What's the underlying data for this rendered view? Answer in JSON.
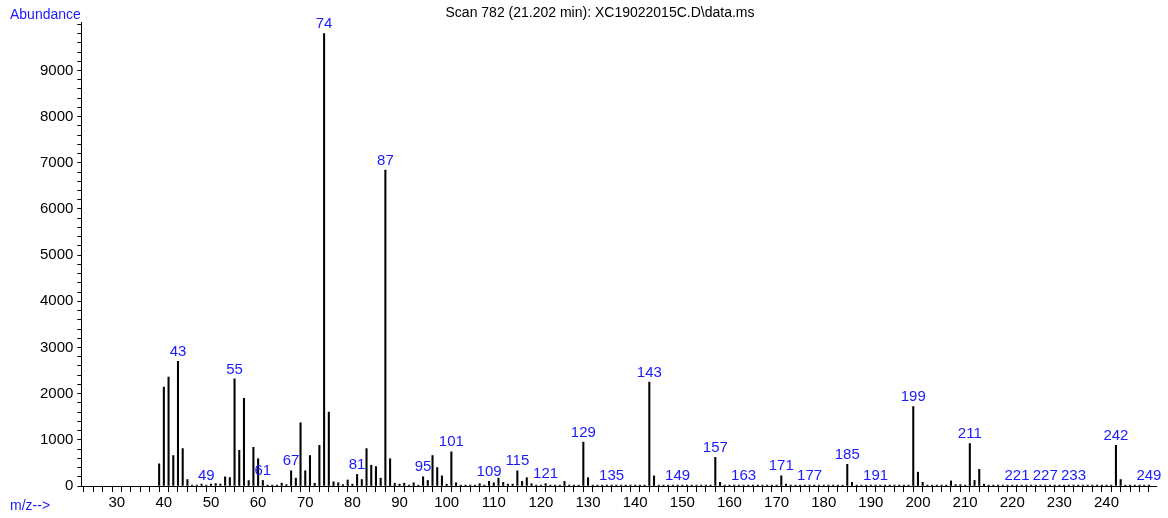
{
  "chart_data": {
    "type": "bar",
    "title": "Scan 782 (21.202 min): XC19022015C.D\\data.ms",
    "xlabel": "m/z-->",
    "ylabel": "Abundance",
    "color": "#000000",
    "x": [
      39,
      40,
      41,
      42,
      43,
      44,
      45,
      46,
      47,
      48,
      49,
      50,
      51,
      52,
      53,
      54,
      55,
      56,
      57,
      58,
      59,
      60,
      61,
      62,
      63,
      64,
      65,
      66,
      67,
      68,
      69,
      70,
      71,
      72,
      73,
      74,
      75,
      76,
      77,
      78,
      79,
      80,
      81,
      82,
      83,
      84,
      85,
      86,
      87,
      88,
      89,
      90,
      91,
      92,
      93,
      94,
      95,
      96,
      97,
      98,
      99,
      100,
      101,
      102,
      103,
      104,
      105,
      106,
      107,
      108,
      109,
      110,
      111,
      112,
      113,
      114,
      115,
      116,
      117,
      118,
      119,
      120,
      121,
      122,
      123,
      124,
      125,
      126,
      127,
      128,
      129,
      130,
      131,
      132,
      133,
      134,
      135,
      136,
      137,
      138,
      139,
      140,
      141,
      142,
      143,
      144,
      145,
      146,
      147,
      148,
      149,
      150,
      151,
      152,
      153,
      154,
      155,
      156,
      157,
      158,
      159,
      160,
      161,
      162,
      163,
      164,
      165,
      166,
      167,
      168,
      169,
      170,
      171,
      172,
      173,
      174,
      175,
      176,
      177,
      178,
      179,
      180,
      181,
      182,
      183,
      184,
      185,
      186,
      187,
      188,
      189,
      190,
      191,
      192,
      193,
      194,
      195,
      196,
      197,
      198,
      199,
      200,
      201,
      202,
      203,
      204,
      205,
      206,
      207,
      208,
      209,
      210,
      211,
      212,
      213,
      214,
      215,
      216,
      217,
      218,
      219,
      220,
      221,
      222,
      223,
      224,
      225,
      226,
      227,
      228,
      229,
      230,
      231,
      232,
      233,
      234,
      235,
      236,
      237,
      238,
      239,
      240,
      241,
      242,
      243,
      244,
      245,
      246,
      247,
      248,
      249
    ],
    "values": [
      480,
      2140,
      2360,
      660,
      2700,
      810,
      140,
      20,
      20,
      40,
      20,
      40,
      50,
      40,
      200,
      180,
      2320,
      770,
      1900,
      120,
      840,
      590,
      120,
      20,
      20,
      20,
      60,
      30,
      330,
      170,
      1370,
      330,
      660,
      60,
      880,
      9800,
      1600,
      90,
      70,
      30,
      130,
      40,
      250,
      140,
      810,
      450,
      420,
      170,
      6840,
      590,
      60,
      40,
      60,
      20,
      70,
      20,
      200,
      120,
      660,
      400,
      220,
      40,
      740,
      70,
      20,
      20,
      20,
      20,
      50,
      20,
      100,
      70,
      170,
      80,
      40,
      40,
      330,
      100,
      180,
      50,
      20,
      20,
      50,
      20,
      20,
      20,
      100,
      20,
      20,
      20,
      950,
      180,
      20,
      20,
      20,
      20,
      20,
      20,
      20,
      20,
      20,
      20,
      20,
      20,
      2250,
      220,
      20,
      20,
      20,
      20,
      20,
      20,
      20,
      20,
      20,
      20,
      20,
      20,
      620,
      80,
      20,
      20,
      20,
      20,
      20,
      20,
      20,
      20,
      20,
      20,
      20,
      20,
      220,
      40,
      20,
      20,
      20,
      20,
      20,
      20,
      20,
      20,
      20,
      20,
      20,
      20,
      470,
      80,
      20,
      20,
      20,
      20,
      20,
      20,
      20,
      20,
      20,
      20,
      20,
      20,
      1720,
      300,
      80,
      20,
      20,
      20,
      20,
      20,
      110,
      30,
      30,
      20,
      920,
      120,
      360,
      40,
      20,
      20,
      20,
      20,
      20,
      20,
      20,
      20,
      20,
      20,
      20,
      20,
      20,
      20,
      20,
      20,
      20,
      20,
      20,
      20,
      20,
      20,
      20,
      20,
      20,
      20,
      20,
      880,
      140,
      20,
      20,
      20,
      20,
      20,
      20
    ],
    "annotations": [
      {
        "text": "43",
        "x": 43,
        "y": 2700
      },
      {
        "text": "49",
        "x": 49,
        "y": 20
      },
      {
        "text": "55",
        "x": 55,
        "y": 2320
      },
      {
        "text": "61",
        "x": 61,
        "y": 120
      },
      {
        "text": "67",
        "x": 67,
        "y": 330
      },
      {
        "text": "74",
        "x": 74,
        "y": 9800
      },
      {
        "text": "81",
        "x": 81,
        "y": 250
      },
      {
        "text": "87",
        "x": 87,
        "y": 6840
      },
      {
        "text": "95",
        "x": 95,
        "y": 200
      },
      {
        "text": "101",
        "x": 101,
        "y": 740
      },
      {
        "text": "109",
        "x": 109,
        "y": 100
      },
      {
        "text": "115",
        "x": 115,
        "y": 330
      },
      {
        "text": "121",
        "x": 121,
        "y": 50
      },
      {
        "text": "129",
        "x": 129,
        "y": 950
      },
      {
        "text": "135",
        "x": 135,
        "y": 20
      },
      {
        "text": "143",
        "x": 143,
        "y": 2250
      },
      {
        "text": "149",
        "x": 149,
        "y": 20
      },
      {
        "text": "157",
        "x": 157,
        "y": 620
      },
      {
        "text": "163",
        "x": 163,
        "y": 20
      },
      {
        "text": "171",
        "x": 171,
        "y": 220
      },
      {
        "text": "177",
        "x": 177,
        "y": 20
      },
      {
        "text": "185",
        "x": 185,
        "y": 470
      },
      {
        "text": "191",
        "x": 191,
        "y": 20
      },
      {
        "text": "199",
        "x": 199,
        "y": 1720
      },
      {
        "text": "211",
        "x": 211,
        "y": 920
      },
      {
        "text": "221",
        "x": 221,
        "y": 20
      },
      {
        "text": "227",
        "x": 227,
        "y": 20
      },
      {
        "text": "233",
        "x": 233,
        "y": 20
      },
      {
        "text": "242",
        "x": 242,
        "y": 880
      },
      {
        "text": "249",
        "x": 249,
        "y": 20
      }
    ],
    "xlim": [
      22.5,
      250.5
    ],
    "xticks": [
      {
        "value": 24,
        "label": null
      },
      {
        "value": 26,
        "label": null
      },
      {
        "value": 28,
        "label": null
      },
      30,
      {
        "value": 32,
        "label": null
      },
      {
        "value": 34,
        "label": null
      },
      {
        "value": 36,
        "label": null
      },
      {
        "value": 38,
        "label": null
      },
      40,
      {
        "value": 42,
        "label": null
      },
      {
        "value": 44,
        "label": null
      },
      {
        "value": 46,
        "label": null
      },
      {
        "value": 48,
        "label": null
      },
      50,
      {
        "value": 52,
        "label": null
      },
      {
        "value": 54,
        "label": null
      },
      {
        "value": 56,
        "label": null
      },
      {
        "value": 58,
        "label": null
      },
      60,
      {
        "value": 62,
        "label": null
      },
      {
        "value": 64,
        "label": null
      },
      {
        "value": 66,
        "label": null
      },
      {
        "value": 68,
        "label": null
      },
      70,
      {
        "value": 72,
        "label": null
      },
      {
        "value": 74,
        "label": null
      },
      {
        "value": 76,
        "label": null
      },
      {
        "value": 78,
        "label": null
      },
      80,
      {
        "value": 82,
        "label": null
      },
      {
        "value": 84,
        "label": null
      },
      {
        "value": 86,
        "label": null
      },
      {
        "value": 88,
        "label": null
      },
      90,
      {
        "value": 92,
        "label": null
      },
      {
        "value": 94,
        "label": null
      },
      {
        "value": 96,
        "label": null
      },
      {
        "value": 98,
        "label": null
      },
      100,
      {
        "value": 102,
        "label": null
      },
      {
        "value": 104,
        "label": null
      },
      {
        "value": 106,
        "label": null
      },
      {
        "value": 108,
        "label": null
      },
      110,
      {
        "value": 112,
        "label": null
      },
      {
        "value": 114,
        "label": null
      },
      {
        "value": 116,
        "label": null
      },
      {
        "value": 118,
        "label": null
      },
      120,
      {
        "value": 122,
        "label": null
      },
      {
        "value": 124,
        "label": null
      },
      {
        "value": 126,
        "label": null
      },
      {
        "value": 128,
        "label": null
      },
      130,
      {
        "value": 132,
        "label": null
      },
      {
        "value": 134,
        "label": null
      },
      {
        "value": 136,
        "label": null
      },
      {
        "value": 138,
        "label": null
      },
      140,
      {
        "value": 142,
        "label": null
      },
      {
        "value": 144,
        "label": null
      },
      {
        "value": 146,
        "label": null
      },
      {
        "value": 148,
        "label": null
      },
      150,
      {
        "value": 152,
        "label": null
      },
      {
        "value": 154,
        "label": null
      },
      {
        "value": 156,
        "label": null
      },
      {
        "value": 158,
        "label": null
      },
      160,
      {
        "value": 162,
        "label": null
      },
      {
        "value": 164,
        "label": null
      },
      {
        "value": 166,
        "label": null
      },
      {
        "value": 168,
        "label": null
      },
      170,
      {
        "value": 172,
        "label": null
      },
      {
        "value": 174,
        "label": null
      },
      {
        "value": 176,
        "label": null
      },
      {
        "value": 178,
        "label": null
      },
      180,
      {
        "value": 182,
        "label": null
      },
      {
        "value": 184,
        "label": null
      },
      {
        "value": 186,
        "label": null
      },
      {
        "value": 188,
        "label": null
      },
      190,
      {
        "value": 192,
        "label": null
      },
      {
        "value": 194,
        "label": null
      },
      {
        "value": 196,
        "label": null
      },
      {
        "value": 198,
        "label": null
      },
      200,
      {
        "value": 202,
        "label": null
      },
      {
        "value": 204,
        "label": null
      },
      {
        "value": 206,
        "label": null
      },
      {
        "value": 208,
        "label": null
      },
      210,
      {
        "value": 212,
        "label": null
      },
      {
        "value": 214,
        "label": null
      },
      {
        "value": 216,
        "label": null
      },
      {
        "value": 218,
        "label": null
      },
      220,
      {
        "value": 222,
        "label": null
      },
      {
        "value": 224,
        "label": null
      },
      {
        "value": 226,
        "label": null
      },
      {
        "value": 228,
        "label": null
      },
      230,
      {
        "value": 232,
        "label": null
      },
      {
        "value": 234,
        "label": null
      },
      {
        "value": 236,
        "label": null
      },
      {
        "value": 238,
        "label": null
      },
      240,
      {
        "value": 242,
        "label": null
      },
      {
        "value": 244,
        "label": null
      },
      {
        "value": 246,
        "label": null
      },
      {
        "value": 248,
        "label": null
      }
    ],
    "ylim": [
      0,
      10050
    ],
    "yticks": [
      0,
      {
        "value": 200,
        "label": null
      },
      {
        "value": 400,
        "label": null
      },
      {
        "value": 600,
        "label": null
      },
      {
        "value": 800,
        "label": null
      },
      1000,
      {
        "value": 1200,
        "label": null
      },
      {
        "value": 1400,
        "label": null
      },
      {
        "value": 1600,
        "label": null
      },
      {
        "value": 1800,
        "label": null
      },
      2000,
      {
        "value": 2200,
        "label": null
      },
      {
        "value": 2400,
        "label": null
      },
      {
        "value": 2600,
        "label": null
      },
      {
        "value": 2800,
        "label": null
      },
      3000,
      {
        "value": 3200,
        "label": null
      },
      {
        "value": 3400,
        "label": null
      },
      {
        "value": 3600,
        "label": null
      },
      {
        "value": 3800,
        "label": null
      },
      4000,
      {
        "value": 4200,
        "label": null
      },
      {
        "value": 4400,
        "label": null
      },
      {
        "value": 4600,
        "label": null
      },
      {
        "value": 4800,
        "label": null
      },
      5000,
      {
        "value": 5200,
        "label": null
      },
      {
        "value": 5400,
        "label": null
      },
      {
        "value": 5600,
        "label": null
      },
      {
        "value": 5800,
        "label": null
      },
      6000,
      {
        "value": 6200,
        "label": null
      },
      {
        "value": 6400,
        "label": null
      },
      {
        "value": 6600,
        "label": null
      },
      {
        "value": 6800,
        "label": null
      },
      7000,
      {
        "value": 7200,
        "label": null
      },
      {
        "value": 7400,
        "label": null
      },
      {
        "value": 7600,
        "label": null
      },
      {
        "value": 7800,
        "label": null
      },
      8000,
      {
        "value": 8200,
        "label": null
      },
      {
        "value": 8400,
        "label": null
      },
      {
        "value": 8600,
        "label": null
      },
      {
        "value": 8800,
        "label": null
      },
      9000,
      {
        "value": 9200,
        "label": null
      },
      {
        "value": 9400,
        "label": null
      },
      {
        "value": 9600,
        "label": null
      },
      {
        "value": 9800,
        "label": null
      },
      {
        "value": 10000,
        "label": null
      }
    ],
    "legend": false
  }
}
